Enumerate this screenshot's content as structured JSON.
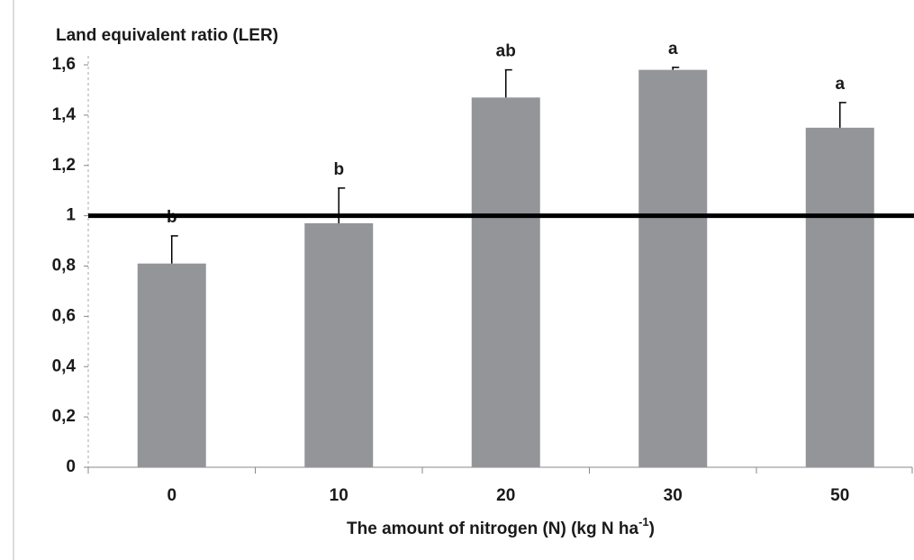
{
  "chart_data": {
    "type": "bar",
    "ylabel": "Land equivalent ratio (LER)",
    "xlabel": {
      "text": "The amount of nitrogen (N) (kg  N ha",
      "superscript": "-1",
      "suffix": ")"
    },
    "categories": [
      "0",
      "10",
      "20",
      "30",
      "50"
    ],
    "values": [
      0.81,
      0.97,
      1.47,
      1.58,
      1.35
    ],
    "errors": [
      0.11,
      0.14,
      0.11,
      0.01,
      0.1
    ],
    "annotations": [
      "b",
      "b",
      "ab",
      "a",
      "a"
    ],
    "color": "#939598",
    "reference_line": 1,
    "ylim": [
      0,
      1.6
    ],
    "yticks": [
      0,
      {
        "value": 0.2,
        "label": "0,2"
      },
      {
        "value": 0.4,
        "label": "0,4"
      },
      {
        "value": 0.6,
        "label": "0,6"
      },
      {
        "value": 0.8,
        "label": "0,8"
      },
      1,
      {
        "value": 1.2,
        "label": "1,2"
      },
      {
        "value": 1.4,
        "label": "1,4"
      },
      {
        "value": 1.6,
        "label": "1,6"
      }
    ]
  }
}
